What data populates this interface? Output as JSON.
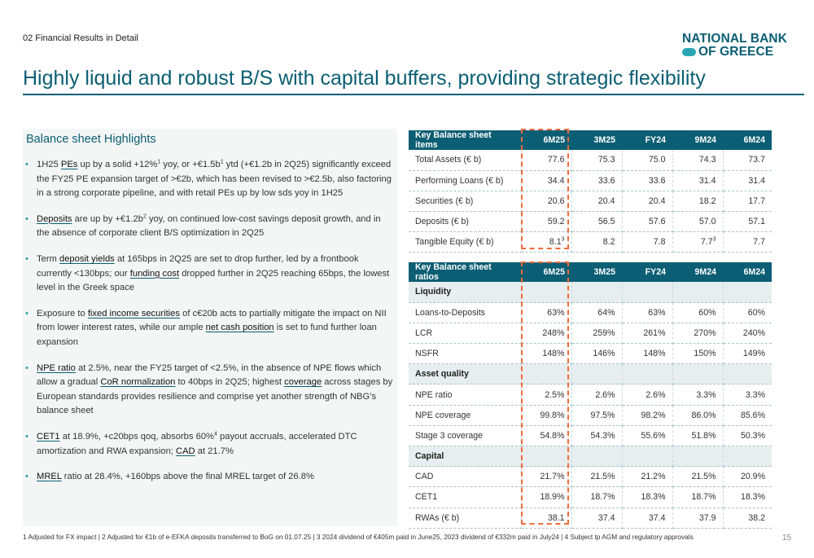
{
  "header": {
    "section_label": "02 Financial Results in Detail",
    "logo_line1": "NATIONAL BANK",
    "logo_line2": "OF GREECE",
    "title": "Highly liquid and robust B/S with capital buffers, providing strategic flexibility"
  },
  "highlights": {
    "heading": "Balance sheet Highlights",
    "bullets": [
      {
        "parts": [
          {
            "t": "1H25 "
          },
          {
            "t": "PEs",
            "k": "b"
          },
          {
            "t": " up by a solid +12%"
          },
          {
            "t": "1",
            "k": "sup"
          },
          {
            "t": " yoy, or +€1.5b"
          },
          {
            "t": "1",
            "k": "sup"
          },
          {
            "t": " ytd (+€1.2b in 2Q25) significantly exceed the FY25 PE expansion target of >€2b, which has been revised to >€2.5b, also factoring in a strong corporate pipeline, and with retail PEs up by low sds yoy in 1H25"
          }
        ]
      },
      {
        "parts": [
          {
            "t": "Deposits",
            "k": "b"
          },
          {
            "t": " are up by +€1.2b"
          },
          {
            "t": "2",
            "k": "sup"
          },
          {
            "t": " yoy, on continued low-cost savings deposit growth, and in the absence of corporate client B/S optimization in 2Q25"
          }
        ]
      },
      {
        "parts": [
          {
            "t": "Term "
          },
          {
            "t": "deposit yields",
            "k": "b"
          },
          {
            "t": " at 165bps in 2Q25 are set to drop further, led by a frontbook currently <130bps; our "
          },
          {
            "t": "funding cost",
            "k": "b"
          },
          {
            "t": " dropped further in 2Q25 reaching 65bps, the lowest level in the Greek space"
          }
        ]
      },
      {
        "parts": [
          {
            "t": "Exposure to "
          },
          {
            "t": "fixed income securities",
            "k": "b"
          },
          {
            "t": " of c€20b acts to partially mitigate the impact on NII from lower interest rates, while our ample "
          },
          {
            "t": "net cash position",
            "k": "b"
          },
          {
            "t": " is set to fund further loan expansion"
          }
        ]
      },
      {
        "parts": [
          {
            "t": "NPE ratio",
            "k": "b"
          },
          {
            "t": " at 2.5%, near the FY25 target of <2.5%, in the absence of NPE flows which  allow a gradual "
          },
          {
            "t": "CoR normalization",
            "k": "b"
          },
          {
            "t": " to 40bps in 2Q25; highest "
          },
          {
            "t": "coverage",
            "k": "b"
          },
          {
            "t": " across stages by European standards provides resilience and comprise yet another strength of NBG’s balance sheet"
          }
        ]
      },
      {
        "parts": [
          {
            "t": "CET1",
            "k": "b"
          },
          {
            "t": " at 18.9%, +c20bps qoq, absorbs 60%"
          },
          {
            "t": "4",
            "k": "sup"
          },
          {
            "t": " payout accruals, accelerated DTC amortization and RWA expansion; "
          },
          {
            "t": "CAD",
            "k": "b"
          },
          {
            "t": " at 21.7%"
          }
        ]
      },
      {
        "parts": [
          {
            "t": "MREL",
            "k": "b"
          },
          {
            "t": " ratio at 28.4%, +160bps above the final MREL target of 26.8%"
          }
        ]
      }
    ]
  },
  "items_table": {
    "headers": [
      "Key Balance sheet items",
      "6M25",
      "3M25",
      "FY24",
      "9M24",
      "6M24"
    ],
    "rows": [
      {
        "label": "Total Assets (€ b)",
        "values": [
          "77.6",
          "75.3",
          "75.0",
          "74.3",
          "73.7"
        ]
      },
      {
        "label": "Performing Loans (€ b)",
        "values": [
          "34.4",
          "33.6",
          "33.6",
          "31.4",
          "31.4"
        ]
      },
      {
        "label": "Securities (€ b)",
        "values": [
          "20.6",
          "20.4",
          "20.4",
          "18.2",
          "17.7"
        ]
      },
      {
        "label": "Deposits (€ b)",
        "values": [
          "59.2",
          "56.5",
          "57.6",
          "57.0",
          "57.1"
        ]
      },
      {
        "label": "Tangible Equity (€ b)",
        "values": [
          "8.1",
          "8.2",
          "7.8",
          "7.7",
          "7.7"
        ],
        "sups": [
          "3",
          "",
          "",
          "3",
          ""
        ]
      }
    ]
  },
  "ratios_table": {
    "headers": [
      "Key Balance sheet ratios",
      "6M25",
      "3M25",
      "FY24",
      "9M24",
      "6M24"
    ],
    "groups": [
      {
        "name": "Liquidity",
        "rows": [
          {
            "label": "Loans-to-Deposits",
            "values": [
              "63%",
              "64%",
              "63%",
              "60%",
              "60%"
            ]
          },
          {
            "label": "LCR",
            "values": [
              "248%",
              "259%",
              "261%",
              "270%",
              "240%"
            ]
          },
          {
            "label": "NSFR",
            "values": [
              "148%",
              "146%",
              "148%",
              "150%",
              "149%"
            ]
          }
        ]
      },
      {
        "name": "Asset quality",
        "rows": [
          {
            "label": "NPE ratio",
            "values": [
              "2.5%",
              "2.6%",
              "2.6%",
              "3.3%",
              "3.3%"
            ]
          },
          {
            "label": "NPE coverage",
            "values": [
              "99.8%",
              "97.5%",
              "98.2%",
              "86.0%",
              "85.6%"
            ]
          },
          {
            "label": "Stage 3 coverage",
            "values": [
              "54.8%",
              "54.3%",
              "55.6%",
              "51.8%",
              "50.3%"
            ]
          }
        ]
      },
      {
        "name": "Capital",
        "rows": [
          {
            "label": "CAD",
            "values": [
              "21.7%",
              "21.5%",
              "21.2%",
              "21.5%",
              "20.9%"
            ]
          },
          {
            "label": "CET1",
            "values": [
              "18.9%",
              "18.7%",
              "18.3%",
              "18.7%",
              "18.3%"
            ]
          },
          {
            "label": "RWAs (€ b)",
            "values": [
              "38.1",
              "37.4",
              "37.4",
              "37.9",
              "38.2"
            ]
          }
        ]
      }
    ]
  },
  "footer": {
    "footnote": "1 Adjusted for FX impact | 2 Adjusted for €1b of e-EFKA deposits transferred to BoG on 01.07.25 | 3 2024 dividend of €405m paid in June25, 2023 dividend of €332m paid in July24 | 4 Subject tp AGM and regulatory approvals",
    "page_number": "15"
  },
  "colors": {
    "brand": "#0b5e73",
    "accent": "#2aa5b4",
    "highlight_box": "#ef6b3b",
    "panel_bg": "#f4f6f6",
    "group_row_bg": "#e7eeef"
  }
}
